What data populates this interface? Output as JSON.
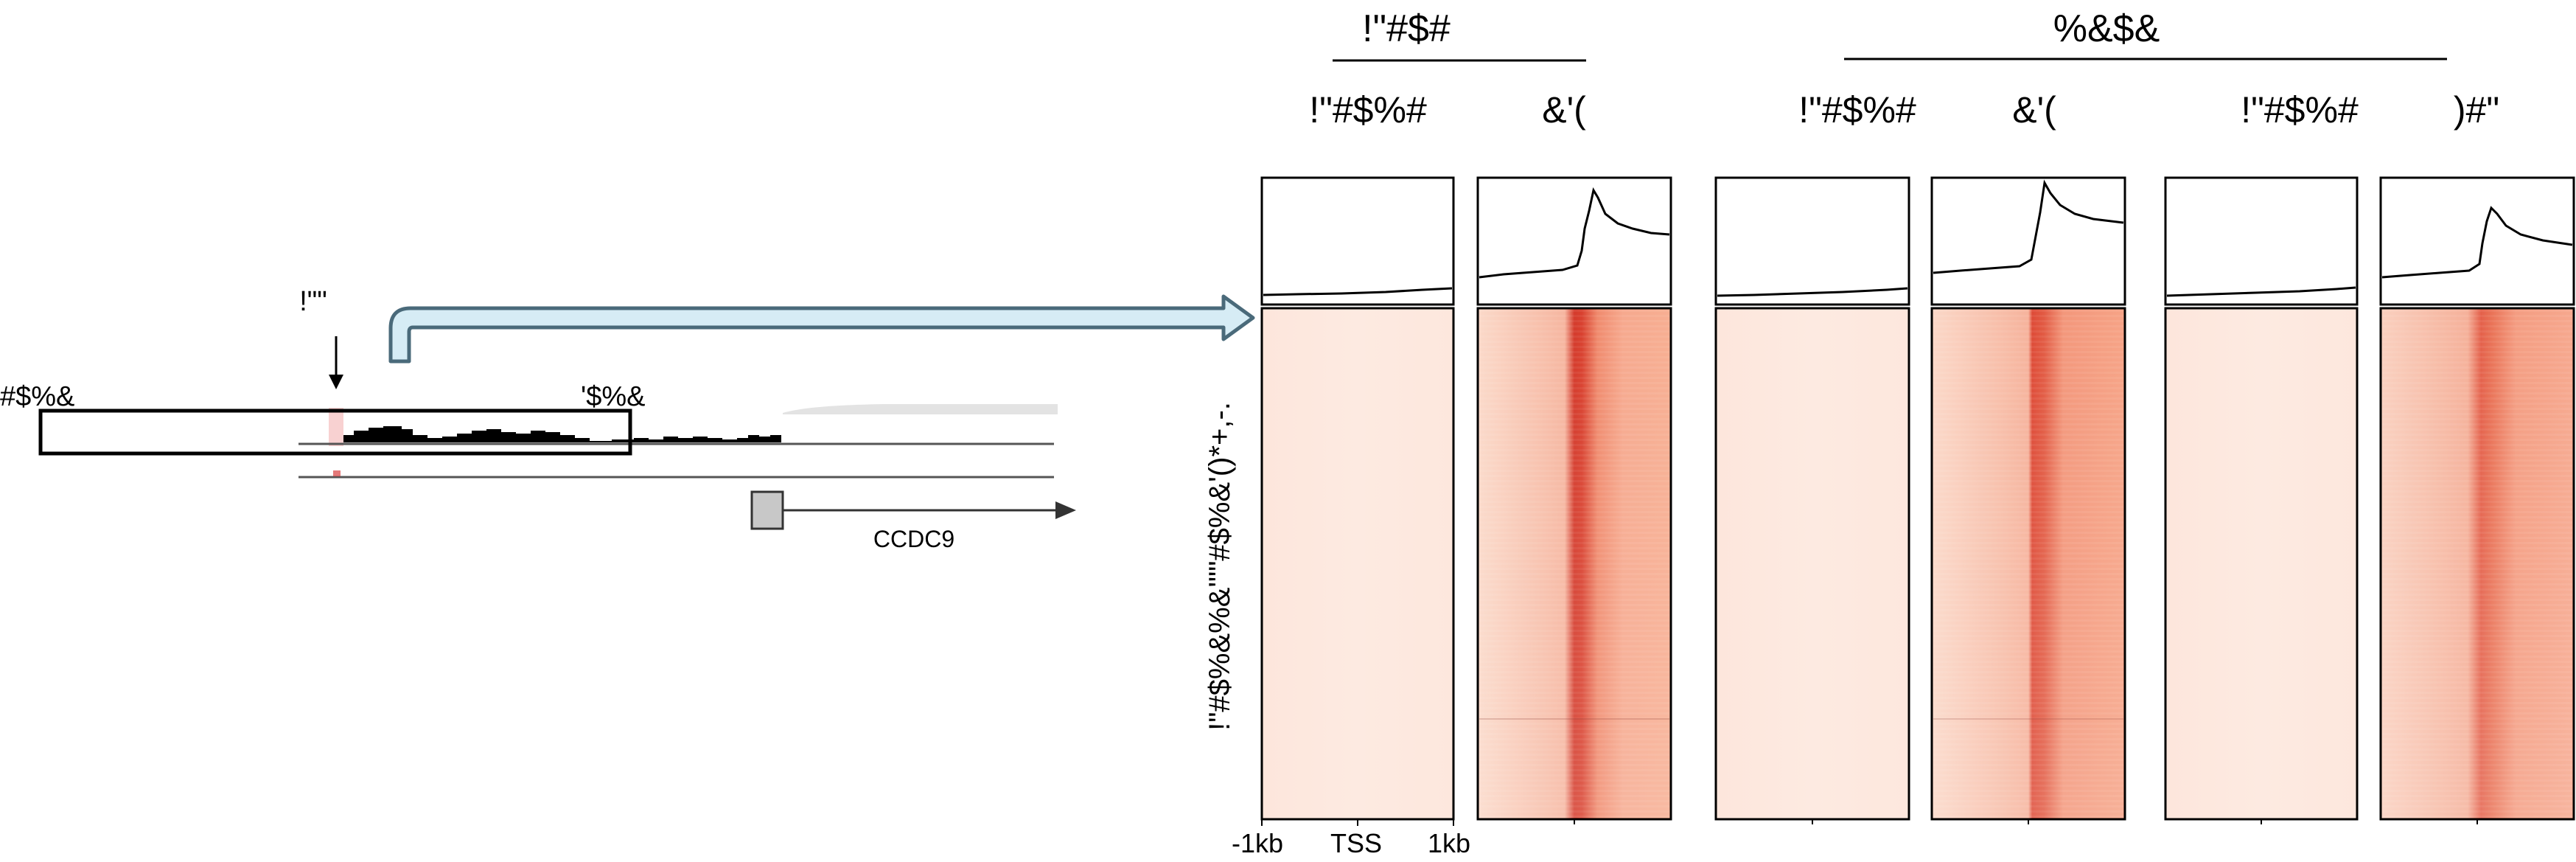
{
  "left_panel": {
    "peak_label": "!\"\"",
    "region_left_label": "#$%&",
    "region_right_label": "'$%&",
    "gene_label": "CCDC9"
  },
  "group_headers": [
    {
      "label": "!\"#$#"
    },
    {
      "label": "%&$&"
    }
  ],
  "column_headers": [
    {
      "label": "!\"#$%#"
    },
    {
      "label": "&'("
    },
    {
      "label": "!\"#$%#"
    },
    {
      "label": "&'("
    },
    {
      "label": "!\"#$%#"
    },
    {
      "label": ")#\""
    }
  ],
  "row_axis_label": "!\"#$%&%&'\"\"#$%&'()*+,-.",
  "x_axis": {
    "left_tick": "-1kb",
    "center_tick": "TSS",
    "right_tick": "1kb"
  },
  "colors": {
    "heat_low": "#fdebe3",
    "heat_high": "#c8211a",
    "arrow_fill": "#d6ecf5",
    "arrow_stroke": "#4a6a7a",
    "gene_box": "#c8c8c8",
    "highlight": "#f5b8b8"
  }
}
